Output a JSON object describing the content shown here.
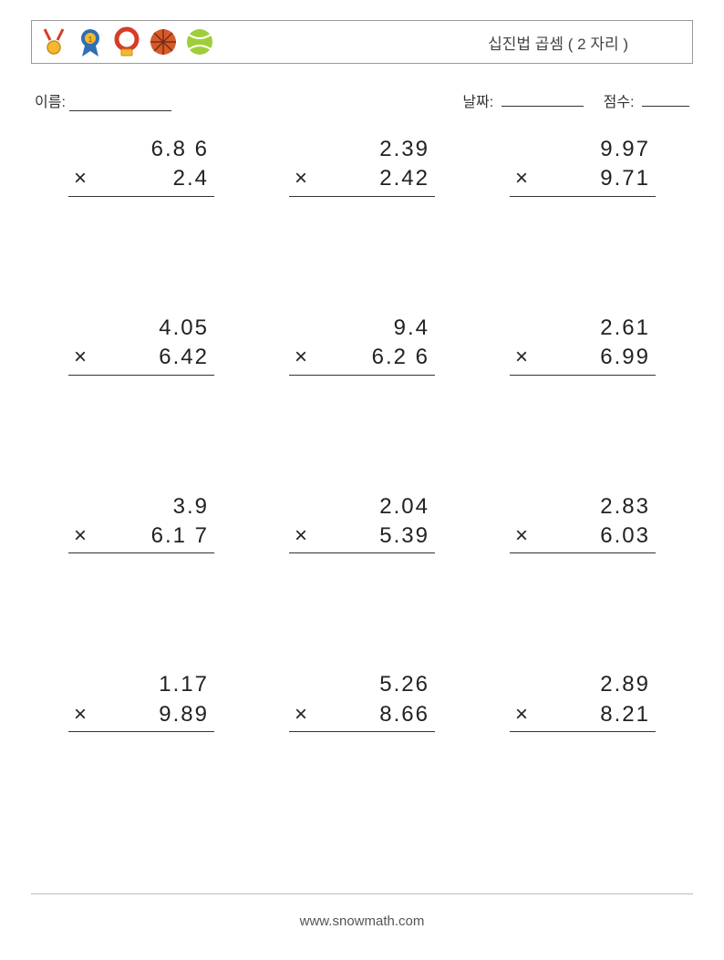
{
  "header": {
    "title": "십진법 곱셈 ( 2 자리 )",
    "icons": [
      "medal-necklace",
      "award-ribbon",
      "medal-ring",
      "basketball",
      "tennis-ball"
    ]
  },
  "labels": {
    "name": "이름:",
    "date": "날짜:",
    "score": "점수:"
  },
  "operator": "×",
  "problems": [
    {
      "a": "6.8 6",
      "b": "2.4"
    },
    {
      "a": "2.39",
      "b": "2.42"
    },
    {
      "a": "9.97",
      "b": "9.71"
    },
    {
      "a": "4.05",
      "b": "6.42"
    },
    {
      "a": "9.4",
      "b": "6.2 6"
    },
    {
      "a": "2.61",
      "b": "6.99"
    },
    {
      "a": "3.9",
      "b": "6.1 7"
    },
    {
      "a": "2.04",
      "b": "5.39"
    },
    {
      "a": "2.83",
      "b": "6.03"
    },
    {
      "a": "1.17",
      "b": "9.89"
    },
    {
      "a": "5.26",
      "b": "8.66"
    },
    {
      "a": "2.89",
      "b": "8.21"
    }
  ],
  "footer": "www.snowmath.com",
  "colors": {
    "text": "#333333",
    "border": "#999999",
    "rule": "#333333"
  }
}
